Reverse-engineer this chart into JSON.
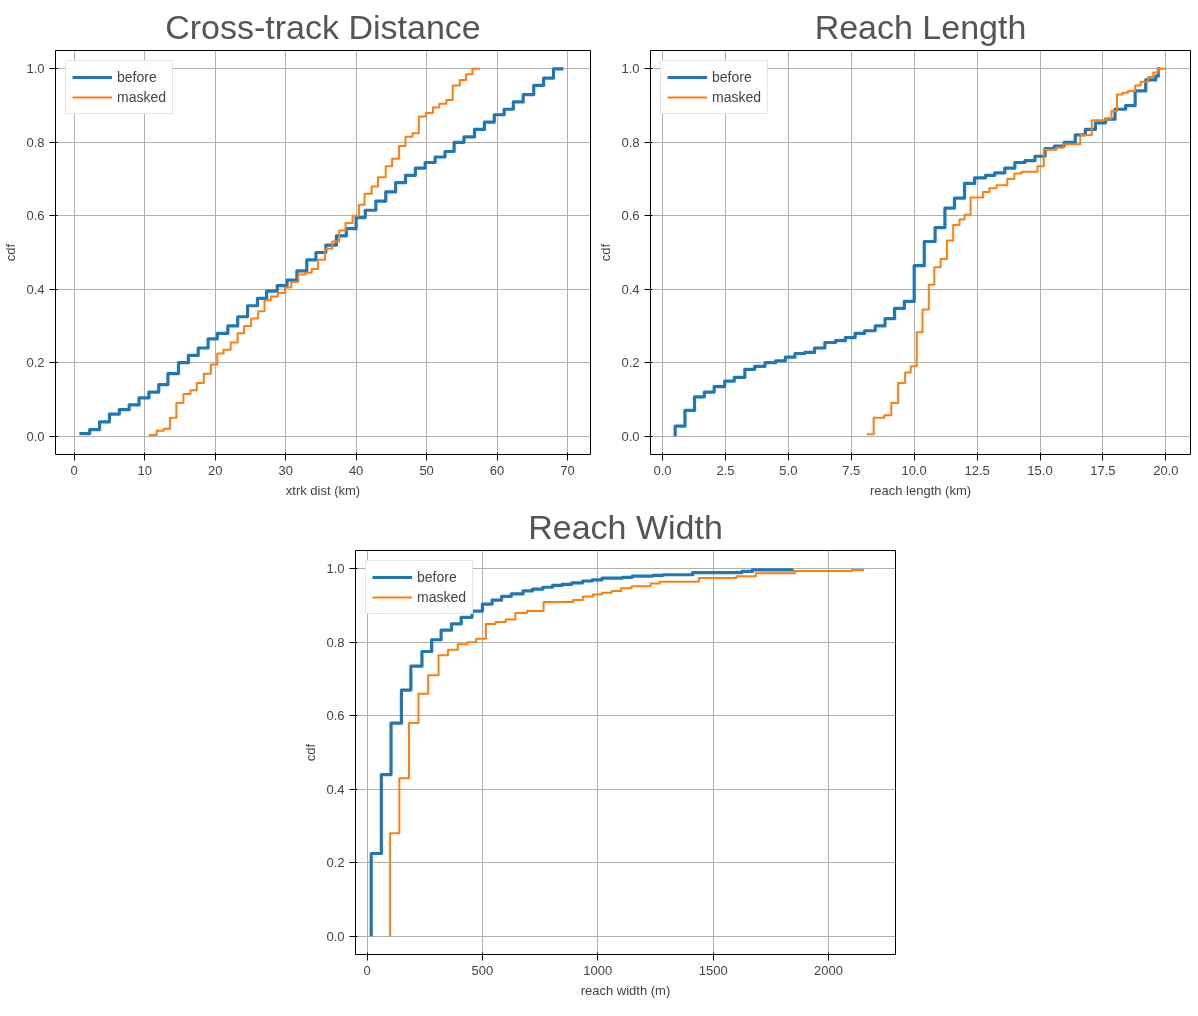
{
  "chart_data": [
    {
      "type": "step",
      "title": "Cross-track Distance",
      "xlabel": "xtrk dist (km)",
      "ylabel": "cdf",
      "xlim": [
        -2.65,
        73.25
      ],
      "ylim": [
        -0.05,
        1.05
      ],
      "xticks": [
        0,
        10,
        20,
        30,
        40,
        50,
        60,
        70
      ],
      "yticks": [
        {
          "value": 0,
          "label": "0.0"
        },
        {
          "value": 0.2,
          "label": "0.2"
        },
        {
          "value": 0.4,
          "label": "0.4"
        },
        {
          "value": 0.6,
          "label": "0.6"
        },
        {
          "value": 0.8,
          "label": "0.8"
        },
        {
          "value": 1,
          "label": "1.0"
        }
      ],
      "grid": true,
      "legend": "top left",
      "series": [
        {
          "name": "before",
          "color": "#1f77b4",
          "x": [
            0.74,
            2.2,
            3.6,
            5.0,
            6.4,
            7.8,
            9.2,
            10.6,
            12.0,
            13.3,
            14.8,
            16.2,
            17.6,
            19.0,
            20.3,
            21.8,
            23.2,
            24.6,
            26.0,
            27.3,
            28.8,
            30.2,
            31.6,
            33.0,
            34.3,
            35.7,
            37.2,
            38.6,
            40.0,
            41.3,
            42.8,
            44.2,
            45.6,
            47.0,
            48.4,
            49.8,
            51.2,
            52.6,
            53.9,
            55.3,
            56.8,
            58.2,
            59.6,
            61.0,
            62.3,
            63.7,
            65.2,
            66.6,
            68.0,
            69.4
          ],
          "values": [
            0.007,
            0.018,
            0.039,
            0.06,
            0.072,
            0.085,
            0.104,
            0.12,
            0.14,
            0.17,
            0.2,
            0.22,
            0.24,
            0.265,
            0.28,
            0.3,
            0.325,
            0.355,
            0.375,
            0.395,
            0.41,
            0.425,
            0.45,
            0.48,
            0.5,
            0.52,
            0.545,
            0.565,
            0.595,
            0.615,
            0.64,
            0.665,
            0.69,
            0.71,
            0.73,
            0.745,
            0.76,
            0.775,
            0.8,
            0.815,
            0.835,
            0.855,
            0.875,
            0.89,
            0.91,
            0.93,
            0.955,
            0.975,
            1.0,
            1.0
          ]
        },
        {
          "name": "masked",
          "color": "#ff7f0e",
          "x": [
            10.6,
            11.7,
            12.7,
            13.6,
            14.5,
            15.5,
            16.5,
            17.4,
            18.4,
            19.4,
            20.3,
            21.2,
            22.2,
            23.2,
            24.1,
            25.1,
            26.1,
            27.0,
            27.9,
            28.9,
            29.9,
            30.8,
            31.8,
            32.8,
            33.7,
            34.6,
            35.6,
            36.6,
            37.6,
            38.5,
            39.5,
            40.4,
            41.2,
            42.2,
            43.1,
            44.2,
            45.1,
            46.1,
            47.0,
            48.0,
            48.9,
            49.9,
            50.9,
            51.8,
            52.8,
            53.7,
            54.7,
            55.6,
            56.5,
            57.6
          ],
          "values": [
            0.003,
            0.015,
            0.02,
            0.05,
            0.09,
            0.115,
            0.125,
            0.145,
            0.17,
            0.195,
            0.225,
            0.235,
            0.255,
            0.28,
            0.3,
            0.32,
            0.34,
            0.37,
            0.38,
            0.39,
            0.405,
            0.42,
            0.44,
            0.445,
            0.455,
            0.48,
            0.51,
            0.53,
            0.56,
            0.58,
            0.6,
            0.63,
            0.66,
            0.68,
            0.705,
            0.735,
            0.755,
            0.79,
            0.815,
            0.825,
            0.87,
            0.88,
            0.895,
            0.905,
            0.915,
            0.955,
            0.97,
            0.985,
            1.0,
            1.0
          ]
        }
      ]
    },
    {
      "type": "step",
      "title": "Reach Length",
      "xlabel": "reach length (km)",
      "ylabel": "cdf",
      "xlim": [
        -0.48,
        20.98
      ],
      "ylim": [
        -0.05,
        1.05
      ],
      "xticks": [
        {
          "value": 0,
          "label": "0.0"
        },
        {
          "value": 2.5,
          "label": "2.5"
        },
        {
          "value": 5,
          "label": "5.0"
        },
        {
          "value": 7.5,
          "label": "7.5"
        },
        {
          "value": 10,
          "label": "10.0"
        },
        {
          "value": 12.5,
          "label": "12.5"
        },
        {
          "value": 15,
          "label": "15.0"
        },
        {
          "value": 17.5,
          "label": "17.5"
        },
        {
          "value": 20,
          "label": "20.0"
        }
      ],
      "yticks": [
        {
          "value": 0,
          "label": "0.0"
        },
        {
          "value": 0.2,
          "label": "0.2"
        },
        {
          "value": 0.4,
          "label": "0.4"
        },
        {
          "value": 0.6,
          "label": "0.6"
        },
        {
          "value": 0.8,
          "label": "0.8"
        },
        {
          "value": 1,
          "label": "1.0"
        }
      ],
      "grid": true,
      "legend": "top left",
      "series": [
        {
          "name": "before",
          "color": "#1f77b4",
          "x": [
            0.5,
            0.5,
            0.89,
            1.27,
            1.66,
            2.05,
            2.47,
            2.85,
            3.27,
            3.66,
            4.07,
            4.49,
            4.88,
            5.26,
            5.65,
            6.04,
            6.45,
            6.87,
            7.26,
            7.65,
            8.03,
            8.45,
            8.84,
            9.22,
            9.61,
            10.0,
            10.4,
            10.83,
            11.22,
            11.6,
            12.0,
            12.4,
            12.83,
            13.2,
            13.6,
            14.0,
            14.4,
            14.8,
            15.2,
            15.57,
            15.96,
            16.4,
            16.8,
            17.2,
            17.6,
            17.98,
            18.4,
            18.78,
            19.2,
            19.6,
            19.7,
            19.78
          ],
          "values": [
            0,
            0.027,
            0.07,
            0.107,
            0.12,
            0.135,
            0.15,
            0.16,
            0.182,
            0.19,
            0.2,
            0.205,
            0.215,
            0.225,
            0.228,
            0.24,
            0.255,
            0.26,
            0.268,
            0.28,
            0.287,
            0.3,
            0.32,
            0.348,
            0.367,
            0.464,
            0.53,
            0.568,
            0.621,
            0.648,
            0.688,
            0.703,
            0.71,
            0.717,
            0.73,
            0.745,
            0.75,
            0.762,
            0.783,
            0.79,
            0.8,
            0.82,
            0.835,
            0.853,
            0.863,
            0.89,
            0.9,
            0.94,
            0.97,
            0.98,
            1.0,
            1.0
          ]
        },
        {
          "name": "masked",
          "color": "#ff7f0e",
          "x": [
            8.12,
            8.39,
            8.81,
            9.09,
            9.36,
            9.64,
            9.86,
            10.1,
            10.33,
            10.58,
            10.8,
            11.05,
            11.3,
            11.55,
            11.8,
            12.0,
            12.24,
            12.74,
            12.99,
            13.27,
            13.7,
            13.98,
            14.26,
            14.9,
            15.15,
            15.65,
            15.93,
            16.6,
            17.06,
            17.6,
            17.84,
            18.06,
            18.28,
            18.5,
            18.78,
            19.0,
            19.3,
            19.5,
            19.7,
            20.0
          ],
          "values": [
            0.005,
            0.05,
            0.057,
            0.09,
            0.145,
            0.173,
            0.19,
            0.283,
            0.345,
            0.412,
            0.46,
            0.482,
            0.533,
            0.575,
            0.59,
            0.603,
            0.65,
            0.665,
            0.675,
            0.683,
            0.7,
            0.715,
            0.72,
            0.735,
            0.78,
            0.785,
            0.795,
            0.82,
            0.86,
            0.865,
            0.885,
            0.93,
            0.935,
            0.94,
            0.955,
            0.965,
            0.978,
            0.99,
            1.0,
            1.0
          ]
        }
      ]
    },
    {
      "type": "step",
      "title": "Reach Width",
      "xlabel": "reach width (m)",
      "ylabel": "cdf",
      "xlim": [
        -50,
        2290
      ],
      "ylim": [
        -0.05,
        1.05
      ],
      "xticks": [
        0,
        500,
        1000,
        1500,
        2000
      ],
      "yticks": [
        {
          "value": 0,
          "label": "0.0"
        },
        {
          "value": 0.2,
          "label": "0.2"
        },
        {
          "value": 0.4,
          "label": "0.4"
        },
        {
          "value": 0.6,
          "label": "0.6"
        },
        {
          "value": 0.8,
          "label": "0.8"
        },
        {
          "value": 1,
          "label": "1.0"
        }
      ],
      "grid": true,
      "legend": "top left",
      "series": [
        {
          "name": "before",
          "color": "#1f77b4",
          "x": [
            18,
            18,
            62,
            104,
            149,
            190,
            238,
            280,
            321,
            366,
            408,
            455,
            500,
            542,
            583,
            625,
            676,
            717,
            762,
            804,
            845,
            887,
            934,
            976,
            1018,
            1107,
            1149,
            1238,
            1283,
            1411,
            1625,
            1670,
            1845
          ],
          "values": [
            0,
            0.225,
            0.44,
            0.58,
            0.67,
            0.735,
            0.775,
            0.807,
            0.833,
            0.85,
            0.868,
            0.885,
            0.904,
            0.915,
            0.925,
            0.932,
            0.94,
            0.945,
            0.95,
            0.955,
            0.958,
            0.962,
            0.967,
            0.97,
            0.975,
            0.977,
            0.98,
            0.982,
            0.984,
            0.99,
            0.993,
            0.997,
            0.998
          ]
        },
        {
          "name": "masked",
          "color": "#ff7f0e",
          "x": [
            100,
            100,
            140,
            182,
            223,
            265,
            310,
            351,
            393,
            435,
            473,
            515,
            557,
            601,
            643,
            693,
            765,
            893,
            935,
            979,
            1018,
            1060,
            1101,
            1146,
            1229,
            1268,
            1438,
            1601,
            1685,
            1854,
            2101,
            2149
          ],
          "values": [
            0,
            0.28,
            0.43,
            0.58,
            0.66,
            0.71,
            0.765,
            0.78,
            0.795,
            0.8,
            0.81,
            0.85,
            0.855,
            0.862,
            0.88,
            0.885,
            0.91,
            0.915,
            0.925,
            0.93,
            0.935,
            0.94,
            0.947,
            0.953,
            0.96,
            0.965,
            0.975,
            0.98,
            0.988,
            0.994,
            0.997,
            1.0
          ]
        }
      ]
    }
  ]
}
